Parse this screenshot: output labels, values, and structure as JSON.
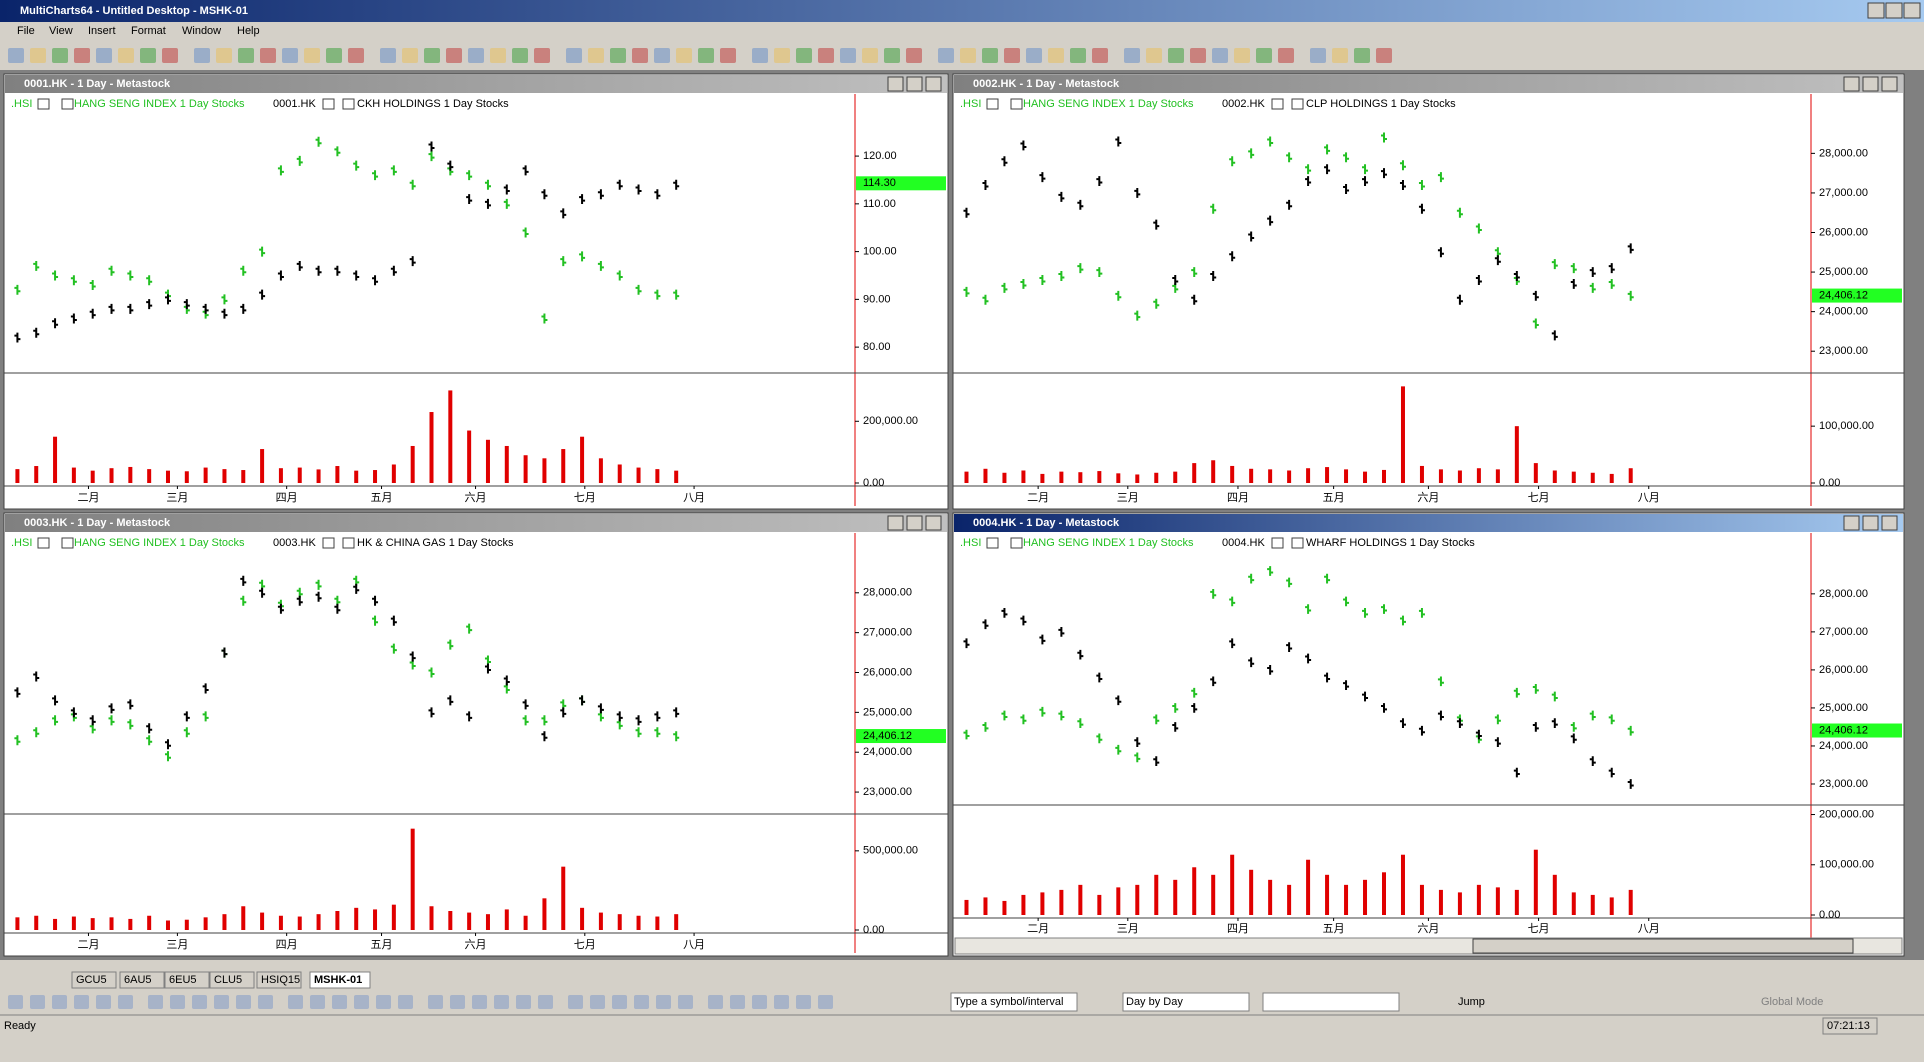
{
  "window": {
    "title": "MultiCharts64 - Untitled Desktop - MSHK-01"
  },
  "menu": [
    "File",
    "View",
    "Insert",
    "Format",
    "Window",
    "Help"
  ],
  "panels": [
    {
      "title": "0001.HK - 1 Day - Metastock",
      "legend": [
        ".HSI",
        "HANG SENG INDEX  1 Day  Stocks",
        "0001.HK",
        "CKH HOLDINGS  1 Day  Stocks"
      ],
      "ylim": [
        75,
        133
      ],
      "yticks": [
        {
          "value": 80,
          "label": "80.00"
        },
        {
          "value": 90,
          "label": "90.00"
        },
        {
          "value": 100,
          "label": "100.00"
        },
        {
          "value": 110,
          "label": "110.00"
        },
        {
          "value": 120,
          "label": "120.00"
        }
      ],
      "last": {
        "value": 114.3,
        "label": "114.30"
      },
      "series": [
        {
          "name": "0001.HK",
          "color": "#000000",
          "values": [
            82,
            83,
            85,
            86,
            87,
            88,
            88,
            89,
            90,
            89,
            88,
            87,
            88,
            91,
            95,
            97,
            96,
            96,
            95,
            94,
            96,
            98,
            122,
            118,
            111,
            110,
            113,
            117,
            112,
            108,
            111,
            112,
            114,
            113,
            112,
            114
          ]
        },
        {
          "name": ".HSI",
          "color": "#22c022",
          "values": [
            92,
            97,
            95,
            94,
            93,
            96,
            95,
            94,
            91,
            88,
            87,
            90,
            96,
            100,
            117,
            119,
            123,
            121,
            118,
            116,
            117,
            114,
            120,
            117,
            116,
            114,
            110,
            104,
            86,
            98,
            99,
            97,
            95,
            92,
            91,
            91
          ]
        }
      ],
      "vlim": [
        0,
        350000
      ],
      "vticks": [
        {
          "value": 0,
          "label": "0.00"
        },
        {
          "value": 200000,
          "label": "200,000.00"
        }
      ],
      "volume": [
        45000,
        55000,
        150000,
        50000,
        40000,
        48000,
        52000,
        45000,
        40000,
        38000,
        50000,
        45000,
        42000,
        110000,
        48000,
        50000,
        44000,
        55000,
        40000,
        42000,
        60000,
        120000,
        230000,
        300000,
        170000,
        140000,
        120000,
        90000,
        80000,
        110000,
        150000,
        80000,
        60000,
        50000,
        45000,
        40000
      ],
      "months": [
        "二月",
        "三月",
        "四月",
        "五月",
        "六月",
        "七月",
        "八月"
      ]
    },
    {
      "title": "0002.HK - 1 Day - Metastock",
      "legend": [
        ".HSI",
        "HANG SENG INDEX  1 Day  Stocks",
        "0002.HK",
        "CLP HOLDINGS  1 Day  Stocks"
      ],
      "ylim": [
        22500,
        29500
      ],
      "yticks": [
        {
          "value": 23000,
          "label": "23,000.00"
        },
        {
          "value": 24000,
          "label": "24,000.00"
        },
        {
          "value": 25000,
          "label": "25,000.00"
        },
        {
          "value": 26000,
          "label": "26,000.00"
        },
        {
          "value": 27000,
          "label": "27,000.00"
        },
        {
          "value": 28000,
          "label": "28,000.00"
        }
      ],
      "last": {
        "value": 24406.12,
        "label": "24,406.12"
      },
      "series": [
        {
          "name": "0002.HK",
          "color": "#000000",
          "values": [
            26500,
            27200,
            27800,
            28200,
            27400,
            26900,
            26700,
            27300,
            28300,
            27000,
            26200,
            24800,
            24300,
            24900,
            25400,
            25900,
            26300,
            26700,
            27300,
            27600,
            27100,
            27300,
            27500,
            27200,
            26600,
            25500,
            24300,
            24800,
            25300,
            24900,
            24400,
            23400,
            24700,
            25000,
            25100,
            25600
          ]
        },
        {
          "name": ".HSI",
          "color": "#22c022",
          "values": [
            24500,
            24300,
            24600,
            24700,
            24800,
            24900,
            25100,
            25000,
            24400,
            23900,
            24200,
            24600,
            25000,
            26600,
            27800,
            28000,
            28300,
            27900,
            27600,
            28100,
            27900,
            27600,
            28400,
            27700,
            27200,
            27400,
            26500,
            26100,
            25500,
            24800,
            23700,
            25200,
            25100,
            24600,
            24700,
            24400
          ]
        }
      ],
      "vlim": [
        0,
        190000
      ],
      "vticks": [
        {
          "value": 0,
          "label": "0.00"
        },
        {
          "value": 100000,
          "label": "100,000.00"
        }
      ],
      "volume": [
        20000,
        25000,
        18000,
        22000,
        16000,
        20000,
        19000,
        21000,
        17000,
        15000,
        18000,
        20000,
        35000,
        40000,
        30000,
        25000,
        24000,
        22000,
        26000,
        28000,
        24000,
        20000,
        23000,
        170000,
        30000,
        24000,
        22000,
        26000,
        24000,
        100000,
        35000,
        22000,
        20000,
        18000,
        16000,
        26000
      ],
      "months": [
        "二月",
        "三月",
        "四月",
        "五月",
        "六月",
        "七月",
        "八月"
      ]
    },
    {
      "title": "0003.HK - 1 Day - Metastock",
      "legend": [
        ".HSI",
        "HANG SENG INDEX  1 Day  Stocks",
        "0003.HK",
        "HK & CHINA GAS  1 Day  Stocks"
      ],
      "ylim": [
        22500,
        29500
      ],
      "yticks": [
        {
          "value": 23000,
          "label": "23,000.00"
        },
        {
          "value": 24000,
          "label": "24,000.00"
        },
        {
          "value": 25000,
          "label": "25,000.00"
        },
        {
          "value": 26000,
          "label": "26,000.00"
        },
        {
          "value": 27000,
          "label": "27,000.00"
        },
        {
          "value": 28000,
          "label": "28,000.00"
        }
      ],
      "last": {
        "value": 24406.12,
        "label": "24,406.12"
      },
      "series": [
        {
          "name": "0003.HK",
          "color": "#000000",
          "values": [
            25500,
            25900,
            25300,
            25000,
            24800,
            25100,
            25200,
            24600,
            24200,
            24900,
            25600,
            26500,
            28300,
            28000,
            27600,
            27800,
            27900,
            27600,
            28100,
            27800,
            27300,
            26400,
            25000,
            25300,
            24900,
            26100,
            25800,
            25200,
            24400,
            25000,
            25300,
            25100,
            24900,
            24800,
            24900,
            25000
          ]
        },
        {
          "name": ".HSI",
          "color": "#22c022",
          "values": [
            24300,
            24500,
            24800,
            24900,
            24600,
            24800,
            24700,
            24300,
            23900,
            24500,
            24900,
            26500,
            27800,
            28200,
            27700,
            28000,
            28200,
            27800,
            28300,
            27300,
            26600,
            26200,
            26000,
            26700,
            27100,
            26300,
            25600,
            24800,
            24800,
            25200,
            25300,
            24900,
            24700,
            24500,
            24500,
            24400
          ]
        }
      ],
      "vlim": [
        0,
        720000
      ],
      "vticks": [
        {
          "value": 0,
          "label": "0.00"
        },
        {
          "value": 500000,
          "label": "500,000.00"
        }
      ],
      "volume": [
        80000,
        90000,
        70000,
        85000,
        75000,
        80000,
        70000,
        90000,
        60000,
        65000,
        80000,
        100000,
        150000,
        110000,
        90000,
        85000,
        100000,
        120000,
        140000,
        130000,
        160000,
        640000,
        150000,
        120000,
        110000,
        100000,
        130000,
        90000,
        200000,
        400000,
        140000,
        110000,
        100000,
        90000,
        85000,
        100000
      ],
      "months": [
        "二月",
        "三月",
        "四月",
        "五月",
        "六月",
        "七月",
        "八月"
      ]
    },
    {
      "title": "0004.HK - 1 Day - Metastock",
      "legend": [
        ".HSI",
        "HANG SENG INDEX  1 Day  Stocks",
        "0004.HK",
        "WHARF HOLDINGS  1 Day  Stocks"
      ],
      "ylim": [
        22500,
        29600
      ],
      "yticks": [
        {
          "value": 23000,
          "label": "23,000.00"
        },
        {
          "value": 24000,
          "label": "24,000.00"
        },
        {
          "value": 25000,
          "label": "25,000.00"
        },
        {
          "value": 26000,
          "label": "26,000.00"
        },
        {
          "value": 27000,
          "label": "27,000.00"
        },
        {
          "value": 28000,
          "label": "28,000.00"
        }
      ],
      "last": {
        "value": 24406.12,
        "label": "24,406.12"
      },
      "series": [
        {
          "name": "0004.HK",
          "color": "#000000",
          "values": [
            26700,
            27200,
            27500,
            27300,
            26800,
            27000,
            26400,
            25800,
            25200,
            24100,
            23600,
            24500,
            25000,
            25700,
            26700,
            26200,
            26000,
            26600,
            26300,
            25800,
            25600,
            25300,
            25000,
            24600,
            24400,
            24800,
            24600,
            24300,
            24100,
            23300,
            24500,
            24600,
            24200,
            23600,
            23300,
            23000
          ]
        },
        {
          "name": ".HSI",
          "color": "#22c022",
          "values": [
            24300,
            24500,
            24800,
            24700,
            24900,
            24800,
            24600,
            24200,
            23900,
            23700,
            24700,
            25000,
            25400,
            28000,
            27800,
            28400,
            28600,
            28300,
            27600,
            28400,
            27800,
            27500,
            27600,
            27300,
            27500,
            25700,
            24700,
            24200,
            24700,
            25400,
            25500,
            25300,
            24500,
            24800,
            24700,
            24400
          ]
        }
      ],
      "vlim": [
        0,
        215000
      ],
      "vticks": [
        {
          "value": 0,
          "label": "0.00"
        },
        {
          "value": 100000,
          "label": "100,000.00"
        },
        {
          "value": 200000,
          "label": "200,000.00"
        }
      ],
      "volume": [
        30000,
        35000,
        28000,
        40000,
        45000,
        50000,
        60000,
        40000,
        55000,
        60000,
        80000,
        70000,
        95000,
        80000,
        120000,
        90000,
        70000,
        60000,
        110000,
        80000,
        60000,
        70000,
        85000,
        120000,
        60000,
        50000,
        45000,
        60000,
        55000,
        50000,
        130000,
        80000,
        45000,
        40000,
        35000,
        50000
      ],
      "months": [
        "二月",
        "三月",
        "四月",
        "五月",
        "六月",
        "七月",
        "八月"
      ]
    }
  ],
  "tabs": [
    "GCU5",
    "6AU5",
    "6EU5",
    "CLU5",
    "HSIQ15",
    "MSHK-01"
  ],
  "bottom_toolbar": {
    "symbol": "Type a symbol/interval",
    "mode": "Day by Day",
    "jump": "Jump",
    "global": "Global Mode"
  },
  "status": {
    "text": "Ready",
    "time": "07:21:13"
  }
}
